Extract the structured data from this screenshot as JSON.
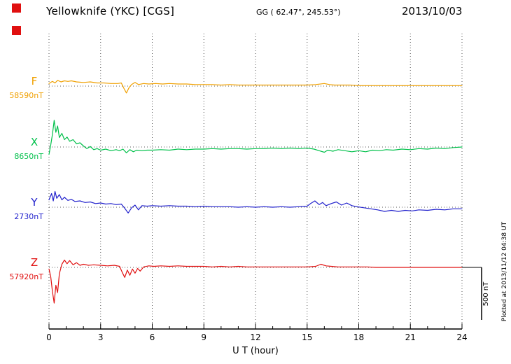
{
  "header": {
    "station": "Yellowknife (YKC)  [CGS]",
    "coords": "GG ( 62.47°, 245.53°)",
    "date": "2013/10/03"
  },
  "axis": {
    "xlabel": "U T (hour)"
  },
  "scale_bar": {
    "label": "500 nT"
  },
  "footer": {
    "plotted_at": "Plotted at 2013/11/12 04:38 UT"
  },
  "chart_data": {
    "type": "line",
    "title": "Yellowknife (YKC) [CGS] magnetogram 2013/10/03",
    "xlabel": "U T (hour)",
    "x_range": [
      0,
      24
    ],
    "x_ticks": [
      0,
      3,
      6,
      9,
      12,
      15,
      18,
      21,
      24
    ],
    "grid": "dotted vertical lines every 3 h; dotted horizontal baseline per trace",
    "scale_bar_nT": 500,
    "series": [
      {
        "name": "F",
        "baseline_nT": 58590,
        "baseline_label": "58590nT",
        "color": "#f0a000",
        "units": "nT offset from baseline",
        "points": [
          [
            0,
            25
          ],
          [
            0.2,
            45
          ],
          [
            0.35,
            30
          ],
          [
            0.5,
            55
          ],
          [
            0.7,
            40
          ],
          [
            0.9,
            50
          ],
          [
            1.1,
            45
          ],
          [
            1.3,
            50
          ],
          [
            1.6,
            40
          ],
          [
            2,
            35
          ],
          [
            2.4,
            40
          ],
          [
            2.8,
            30
          ],
          [
            3.2,
            30
          ],
          [
            3.6,
            25
          ],
          [
            4,
            25
          ],
          [
            4.2,
            30
          ],
          [
            4.35,
            -20
          ],
          [
            4.5,
            -65
          ],
          [
            4.65,
            -15
          ],
          [
            4.8,
            15
          ],
          [
            5,
            35
          ],
          [
            5.2,
            15
          ],
          [
            5.5,
            25
          ],
          [
            5.8,
            20
          ],
          [
            6.2,
            25
          ],
          [
            6.6,
            20
          ],
          [
            7,
            25
          ],
          [
            7.5,
            20
          ],
          [
            8,
            20
          ],
          [
            8.5,
            15
          ],
          [
            9,
            15
          ],
          [
            9.5,
            15
          ],
          [
            10,
            10
          ],
          [
            10.5,
            15
          ],
          [
            11,
            10
          ],
          [
            11.5,
            10
          ],
          [
            12,
            10
          ],
          [
            12.5,
            10
          ],
          [
            13,
            10
          ],
          [
            13.5,
            10
          ],
          [
            14,
            10
          ],
          [
            14.5,
            10
          ],
          [
            15,
            10
          ],
          [
            15.5,
            15
          ],
          [
            16,
            25
          ],
          [
            16.3,
            15
          ],
          [
            16.6,
            10
          ],
          [
            17,
            10
          ],
          [
            17.5,
            10
          ],
          [
            18,
            5
          ],
          [
            18.5,
            5
          ],
          [
            19,
            5
          ],
          [
            19.5,
            5
          ],
          [
            20,
            5
          ],
          [
            20.5,
            5
          ],
          [
            21,
            5
          ],
          [
            21.5,
            5
          ],
          [
            22,
            5
          ],
          [
            22.5,
            5
          ],
          [
            23,
            5
          ],
          [
            23.5,
            5
          ],
          [
            24,
            5
          ]
        ]
      },
      {
        "name": "X",
        "baseline_nT": 8650,
        "baseline_label": "8650nT",
        "color": "#00c04a",
        "units": "nT offset from baseline",
        "points": [
          [
            0,
            -70
          ],
          [
            0.1,
            20
          ],
          [
            0.2,
            120
          ],
          [
            0.3,
            255
          ],
          [
            0.4,
            140
          ],
          [
            0.5,
            200
          ],
          [
            0.6,
            90
          ],
          [
            0.75,
            130
          ],
          [
            0.9,
            70
          ],
          [
            1.05,
            95
          ],
          [
            1.2,
            55
          ],
          [
            1.4,
            70
          ],
          [
            1.6,
            30
          ],
          [
            1.8,
            40
          ],
          [
            2,
            10
          ],
          [
            2.2,
            -15
          ],
          [
            2.4,
            5
          ],
          [
            2.6,
            -25
          ],
          [
            2.8,
            -15
          ],
          [
            3,
            -30
          ],
          [
            3.3,
            -20
          ],
          [
            3.6,
            -35
          ],
          [
            3.9,
            -25
          ],
          [
            4.1,
            -35
          ],
          [
            4.3,
            -20
          ],
          [
            4.5,
            -55
          ],
          [
            4.7,
            -25
          ],
          [
            4.9,
            -45
          ],
          [
            5.1,
            -30
          ],
          [
            5.4,
            -35
          ],
          [
            5.7,
            -30
          ],
          [
            6,
            -30
          ],
          [
            6.5,
            -25
          ],
          [
            7,
            -30
          ],
          [
            7.5,
            -20
          ],
          [
            8,
            -25
          ],
          [
            8.5,
            -20
          ],
          [
            9,
            -20
          ],
          [
            9.5,
            -15
          ],
          [
            10,
            -20
          ],
          [
            10.5,
            -15
          ],
          [
            11,
            -15
          ],
          [
            11.5,
            -20
          ],
          [
            12,
            -15
          ],
          [
            12.5,
            -15
          ],
          [
            13,
            -10
          ],
          [
            13.5,
            -15
          ],
          [
            14,
            -10
          ],
          [
            14.5,
            -15
          ],
          [
            15,
            -10
          ],
          [
            15.4,
            -20
          ],
          [
            15.7,
            -35
          ],
          [
            16,
            -50
          ],
          [
            16.2,
            -30
          ],
          [
            16.5,
            -40
          ],
          [
            16.8,
            -25
          ],
          [
            17.2,
            -35
          ],
          [
            17.6,
            -45
          ],
          [
            18,
            -35
          ],
          [
            18.4,
            -45
          ],
          [
            18.8,
            -30
          ],
          [
            19.2,
            -35
          ],
          [
            19.6,
            -25
          ],
          [
            20,
            -30
          ],
          [
            20.5,
            -20
          ],
          [
            21,
            -25
          ],
          [
            21.5,
            -15
          ],
          [
            22,
            -20
          ],
          [
            22.5,
            -10
          ],
          [
            23,
            -15
          ],
          [
            23.5,
            -5
          ],
          [
            24,
            0
          ]
        ]
      },
      {
        "name": "Y",
        "baseline_nT": 2730,
        "baseline_label": "2730nT",
        "color": "#2020cc",
        "units": "nT offset from baseline",
        "points": [
          [
            0,
            70
          ],
          [
            0.15,
            130
          ],
          [
            0.25,
            60
          ],
          [
            0.35,
            150
          ],
          [
            0.45,
            85
          ],
          [
            0.6,
            120
          ],
          [
            0.75,
            70
          ],
          [
            0.9,
            95
          ],
          [
            1.1,
            65
          ],
          [
            1.3,
            75
          ],
          [
            1.5,
            55
          ],
          [
            1.8,
            60
          ],
          [
            2.1,
            45
          ],
          [
            2.4,
            50
          ],
          [
            2.7,
            35
          ],
          [
            3,
            40
          ],
          [
            3.3,
            30
          ],
          [
            3.6,
            35
          ],
          [
            3.9,
            25
          ],
          [
            4.2,
            30
          ],
          [
            4.4,
            -10
          ],
          [
            4.6,
            -55
          ],
          [
            4.8,
            -5
          ],
          [
            5,
            20
          ],
          [
            5.2,
            -25
          ],
          [
            5.4,
            15
          ],
          [
            5.7,
            10
          ],
          [
            6,
            15
          ],
          [
            6.5,
            10
          ],
          [
            7,
            15
          ],
          [
            7.5,
            10
          ],
          [
            8,
            10
          ],
          [
            8.5,
            5
          ],
          [
            9,
            10
          ],
          [
            9.5,
            5
          ],
          [
            10,
            5
          ],
          [
            10.5,
            5
          ],
          [
            11,
            0
          ],
          [
            11.5,
            5
          ],
          [
            12,
            0
          ],
          [
            12.5,
            5
          ],
          [
            13,
            0
          ],
          [
            13.5,
            5
          ],
          [
            14,
            0
          ],
          [
            14.5,
            5
          ],
          [
            15,
            10
          ],
          [
            15.2,
            35
          ],
          [
            15.45,
            60
          ],
          [
            15.7,
            25
          ],
          [
            15.9,
            45
          ],
          [
            16.1,
            15
          ],
          [
            16.4,
            35
          ],
          [
            16.7,
            50
          ],
          [
            17,
            20
          ],
          [
            17.3,
            40
          ],
          [
            17.6,
            15
          ],
          [
            17.9,
            5
          ],
          [
            18.3,
            -5
          ],
          [
            18.7,
            -15
          ],
          [
            19.1,
            -25
          ],
          [
            19.5,
            -40
          ],
          [
            19.9,
            -30
          ],
          [
            20.3,
            -40
          ],
          [
            20.7,
            -30
          ],
          [
            21.1,
            -35
          ],
          [
            21.5,
            -25
          ],
          [
            22,
            -30
          ],
          [
            22.5,
            -20
          ],
          [
            23,
            -25
          ],
          [
            23.5,
            -15
          ],
          [
            24,
            -15
          ]
        ]
      },
      {
        "name": "Z",
        "baseline_nT": 57920,
        "baseline_label": "57920nT",
        "color": "#e01010",
        "units": "nT offset from baseline",
        "points": [
          [
            0,
            -15
          ],
          [
            0.1,
            -90
          ],
          [
            0.2,
            -230
          ],
          [
            0.3,
            -340
          ],
          [
            0.4,
            -170
          ],
          [
            0.5,
            -240
          ],
          [
            0.6,
            -60
          ],
          [
            0.75,
            30
          ],
          [
            0.9,
            70
          ],
          [
            1.05,
            35
          ],
          [
            1.2,
            65
          ],
          [
            1.4,
            25
          ],
          [
            1.6,
            45
          ],
          [
            1.8,
            20
          ],
          [
            2,
            30
          ],
          [
            2.3,
            20
          ],
          [
            2.6,
            25
          ],
          [
            3,
            20
          ],
          [
            3.4,
            15
          ],
          [
            3.8,
            20
          ],
          [
            4.1,
            10
          ],
          [
            4.25,
            -45
          ],
          [
            4.4,
            -95
          ],
          [
            4.55,
            -25
          ],
          [
            4.7,
            -75
          ],
          [
            4.85,
            -15
          ],
          [
            5,
            -55
          ],
          [
            5.15,
            -10
          ],
          [
            5.3,
            -35
          ],
          [
            5.5,
            5
          ],
          [
            5.8,
            15
          ],
          [
            6.1,
            10
          ],
          [
            6.5,
            15
          ],
          [
            7,
            10
          ],
          [
            7.5,
            15
          ],
          [
            8,
            10
          ],
          [
            8.5,
            10
          ],
          [
            9,
            10
          ],
          [
            9.5,
            5
          ],
          [
            10,
            10
          ],
          [
            10.5,
            5
          ],
          [
            11,
            10
          ],
          [
            11.5,
            5
          ],
          [
            12,
            5
          ],
          [
            12.5,
            5
          ],
          [
            13,
            5
          ],
          [
            13.5,
            5
          ],
          [
            14,
            5
          ],
          [
            14.5,
            5
          ],
          [
            15,
            5
          ],
          [
            15.5,
            10
          ],
          [
            15.8,
            30
          ],
          [
            16.1,
            15
          ],
          [
            16.4,
            10
          ],
          [
            16.8,
            5
          ],
          [
            17.2,
            5
          ],
          [
            17.6,
            5
          ],
          [
            18,
            5
          ],
          [
            18.5,
            5
          ],
          [
            19,
            0
          ],
          [
            19.5,
            0
          ],
          [
            20,
            0
          ],
          [
            21,
            0
          ],
          [
            22,
            0
          ],
          [
            23,
            0
          ],
          [
            24,
            0
          ]
        ]
      }
    ]
  }
}
